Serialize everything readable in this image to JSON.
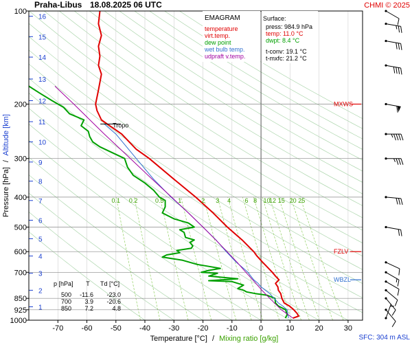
{
  "header": {
    "station": "Praha-Libus",
    "datetime": "18.08.2025 06 UTC",
    "credit": "CHMI © 2025"
  },
  "legend": {
    "title": "EMAGRAM",
    "items": [
      {
        "label": "temperature",
        "color": "#e00000"
      },
      {
        "label": "virt.temp.",
        "color": "#e00000"
      },
      {
        "label": "dew point",
        "color": "#00a000"
      },
      {
        "label": "wet bulb temp.",
        "color": "#3070d0"
      },
      {
        "label": "udpraft v.temp.",
        "color": "#a000a0"
      }
    ]
  },
  "surface": {
    "title": "Surface:",
    "press": "press: 984.9 hPa",
    "temp": "temp: 11.0 °C",
    "dwpt": "dwpt: 8.4 °C",
    "tconv": "t-conv: 19.1 °C",
    "tmxfc": "t-mxfc: 21.2 °C"
  },
  "table": {
    "headers": [
      "p [hPa]",
      "T",
      "Td [°C]"
    ],
    "rows": [
      [
        "500",
        "-11.6",
        "-23.0"
      ],
      [
        "700",
        "3.9",
        "-20.6"
      ],
      [
        "850",
        "7.2",
        "4.8"
      ]
    ]
  },
  "axis_titles": {
    "y_left_a": "Pressure [hPa]",
    "y_left_sep": "/",
    "y_left_b": "Altitude [km]",
    "x_a": "Temperature [°C]",
    "x_sep": "/",
    "x_b": "Mixing ratio [g/kg]"
  },
  "level_labels": {
    "mxws": "MXWS",
    "fzlv": "FZLV",
    "wbzl": "WBZL",
    "tropo": "Tropo"
  },
  "sfc_label": "SFC: 304 m ASL",
  "colors": {
    "temperature": "#e00000",
    "dewpoint": "#00a000",
    "wetbulb": "#3070d0",
    "updraft": "#a000a0",
    "mixing": "#90d060",
    "adiabat": "#a0d0a0",
    "isobar": "#888888",
    "altitude": "#1a3fd0",
    "wind": "#000000"
  },
  "chart_data": {
    "type": "line",
    "y_scale": "log-pressure",
    "ylim": [
      1000,
      100
    ],
    "xlim": [
      -80,
      35
    ],
    "pressure_ticks": [
      100,
      200,
      300,
      400,
      500,
      600,
      700,
      850,
      925,
      1000
    ],
    "temperature_ticks": [
      -70,
      -60,
      -50,
      -40,
      -30,
      -20,
      -10,
      0,
      10,
      20,
      30
    ],
    "altitude_ticks": [
      {
        "km": "1",
        "p": 905
      },
      {
        "km": "2",
        "p": 800
      },
      {
        "km": "3",
        "p": 705
      },
      {
        "km": "4",
        "p": 620
      },
      {
        "km": "5",
        "p": 545
      },
      {
        "km": "6",
        "p": 475
      },
      {
        "km": "7",
        "p": 410
      },
      {
        "km": "8",
        "p": 355
      },
      {
        "km": "9",
        "p": 308
      },
      {
        "km": "10",
        "p": 265
      },
      {
        "km": "11",
        "p": 228
      },
      {
        "km": "12",
        "p": 195
      },
      {
        "km": "13",
        "p": 166
      },
      {
        "km": "14",
        "p": 141
      },
      {
        "km": "15",
        "p": 121
      },
      {
        "km": "16",
        "p": 104
      }
    ],
    "mixing_ratio_labels": [
      {
        "label": "0.1",
        "t": -50
      },
      {
        "label": "0.2",
        "t": -44
      },
      {
        "label": "0.5",
        "t": -35
      },
      {
        "label": "1",
        "t": -28
      },
      {
        "label": "2",
        "t": -20
      },
      {
        "label": "3",
        "t": -15
      },
      {
        "label": "4",
        "t": -11
      },
      {
        "label": "6",
        "t": -5
      },
      {
        "label": "8",
        "t": -2
      },
      {
        "label": "10",
        "t": 2
      },
      {
        "label": "12",
        "t": 4
      },
      {
        "label": "15",
        "t": 7
      },
      {
        "label": "20",
        "t": 11
      },
      {
        "label": "25",
        "t": 14
      }
    ],
    "mixing_ratio_label_p": 410,
    "special_levels": {
      "MXWS": 200,
      "FZLV": 600,
      "WBZL": 740,
      "Tropo_p": 232,
      "Tropo_t": -53
    },
    "series": [
      {
        "name": "temperature",
        "points": [
          [
            985,
            11.0
          ],
          [
            970,
            13.0
          ],
          [
            950,
            12.4
          ],
          [
            925,
            11.3
          ],
          [
            900,
            9.8
          ],
          [
            880,
            8.0
          ],
          [
            850,
            7.2
          ],
          [
            820,
            6.8
          ],
          [
            800,
            6.0
          ],
          [
            780,
            5.8
          ],
          [
            760,
            5.0
          ],
          [
            740,
            6.2
          ],
          [
            720,
            5.0
          ],
          [
            700,
            3.9
          ],
          [
            680,
            2.6
          ],
          [
            650,
            0.6
          ],
          [
            620,
            -1.4
          ],
          [
            600,
            -2.5
          ],
          [
            550,
            -6.5
          ],
          [
            500,
            -11.6
          ],
          [
            450,
            -16.5
          ],
          [
            400,
            -22.5
          ],
          [
            350,
            -30.0
          ],
          [
            300,
            -38.5
          ],
          [
            280,
            -43.0
          ],
          [
            250,
            -48.0
          ],
          [
            232,
            -53.0
          ],
          [
            225,
            -55.0
          ],
          [
            210,
            -56.5
          ],
          [
            200,
            -57.0
          ],
          [
            180,
            -56.0
          ],
          [
            160,
            -55.0
          ],
          [
            150,
            -56.0
          ],
          [
            140,
            -55.5
          ],
          [
            130,
            -56.0
          ],
          [
            120,
            -55.0
          ],
          [
            110,
            -56.0
          ],
          [
            100,
            -55.5
          ]
        ]
      },
      {
        "name": "dew point",
        "points": [
          [
            985,
            8.4
          ],
          [
            960,
            9.0
          ],
          [
            925,
            8.5
          ],
          [
            900,
            6.0
          ],
          [
            880,
            5.0
          ],
          [
            850,
            4.8
          ],
          [
            830,
            2.0
          ],
          [
            820,
            -2.0
          ],
          [
            810,
            -5.0
          ],
          [
            800,
            -6.0
          ],
          [
            790,
            -8.0
          ],
          [
            770,
            -6.0
          ],
          [
            750,
            -10.0
          ],
          [
            745,
            -18.0
          ],
          [
            735,
            -8.0
          ],
          [
            720,
            -18.0
          ],
          [
            705,
            -15.0
          ],
          [
            700,
            -20.6
          ],
          [
            690,
            -18.0
          ],
          [
            680,
            -14.0
          ],
          [
            670,
            -18.0
          ],
          [
            660,
            -22.0
          ],
          [
            640,
            -27.0
          ],
          [
            625,
            -34.0
          ],
          [
            615,
            -32.5
          ],
          [
            605,
            -28.0
          ],
          [
            595,
            -29.0
          ],
          [
            585,
            -24.0
          ],
          [
            575,
            -23.5
          ],
          [
            560,
            -24.5
          ],
          [
            550,
            -23.0
          ],
          [
            540,
            -26.0
          ],
          [
            520,
            -26.5
          ],
          [
            510,
            -28.0
          ],
          [
            500,
            -23.0
          ],
          [
            485,
            -25.0
          ],
          [
            470,
            -30.0
          ],
          [
            450,
            -34.0
          ],
          [
            430,
            -33.0
          ],
          [
            410,
            -33.0
          ],
          [
            400,
            -35.0
          ],
          [
            380,
            -37.0
          ],
          [
            360,
            -40.0
          ],
          [
            340,
            -44.0
          ],
          [
            320,
            -46.0
          ],
          [
            300,
            -47.0
          ],
          [
            285,
            -52.0
          ],
          [
            275,
            -55.5
          ],
          [
            265,
            -58.0
          ],
          [
            255,
            -59.0
          ],
          [
            245,
            -59.5
          ],
          [
            235,
            -62.0
          ],
          [
            225,
            -61.0
          ],
          [
            215,
            -66.0
          ],
          [
            205,
            -68.0
          ],
          [
            195,
            -72.0
          ],
          [
            185,
            -76.0
          ],
          [
            175,
            -80.0
          ]
        ]
      },
      {
        "name": "wet bulb temp.",
        "points": [
          [
            985,
            9.5
          ],
          [
            925,
            9.0
          ],
          [
            900,
            7.5
          ],
          [
            880,
            6.0
          ],
          [
            850,
            4.5
          ],
          [
            820,
            3.0
          ],
          [
            800,
            1.5
          ],
          [
            780,
            0.0
          ],
          [
            760,
            -1.0
          ],
          [
            740,
            -2.5
          ],
          [
            720,
            -3.5
          ],
          [
            700,
            -4.5
          ],
          [
            680,
            -6.0
          ],
          [
            650,
            -8.5
          ],
          [
            600,
            -12.0
          ],
          [
            550,
            -15.5
          ],
          [
            500,
            -20.0
          ],
          [
            450,
            -25.0
          ],
          [
            400,
            -31.0
          ],
          [
            350,
            -37.0
          ],
          [
            300,
            -43.0
          ],
          [
            250,
            -50.0
          ],
          [
            232,
            -54.0
          ]
        ]
      },
      {
        "name": "udpraft v.temp.",
        "points": [
          [
            985,
            11.0
          ],
          [
            925,
            7.0
          ],
          [
            850,
            3.0
          ],
          [
            800,
            0.3
          ],
          [
            750,
            -2.3
          ],
          [
            700,
            -5.2
          ],
          [
            650,
            -8.2
          ],
          [
            600,
            -11.7
          ],
          [
            550,
            -15.6
          ],
          [
            500,
            -20.0
          ],
          [
            450,
            -25.0
          ],
          [
            400,
            -30.8
          ],
          [
            350,
            -37.5
          ],
          [
            300,
            -45.0
          ],
          [
            250,
            -54.0
          ],
          [
            200,
            -64.5
          ],
          [
            175,
            -71.0
          ]
        ]
      }
    ],
    "wind_barbs": [
      {
        "p": 985,
        "dir": 200,
        "kt": 5
      },
      {
        "p": 925,
        "dir": 320,
        "kt": 10
      },
      {
        "p": 850,
        "dir": 320,
        "kt": 10
      },
      {
        "p": 800,
        "dir": 310,
        "kt": 10
      },
      {
        "p": 750,
        "dir": 300,
        "kt": 10
      },
      {
        "p": 700,
        "dir": 300,
        "kt": 15
      },
      {
        "p": 650,
        "dir": 295,
        "kt": 10
      },
      {
        "p": 500,
        "dir": 280,
        "kt": 20
      },
      {
        "p": 400,
        "dir": 275,
        "kt": 30
      },
      {
        "p": 300,
        "dir": 270,
        "kt": 35
      },
      {
        "p": 250,
        "dir": 270,
        "kt": 45
      },
      {
        "p": 200,
        "dir": 280,
        "kt": 60
      },
      {
        "p": 150,
        "dir": 280,
        "kt": 40
      },
      {
        "p": 125,
        "dir": 280,
        "kt": 30
      },
      {
        "p": 110,
        "dir": 280,
        "kt": 25
      },
      {
        "p": 100,
        "dir": 300,
        "kt": 10
      }
    ]
  }
}
